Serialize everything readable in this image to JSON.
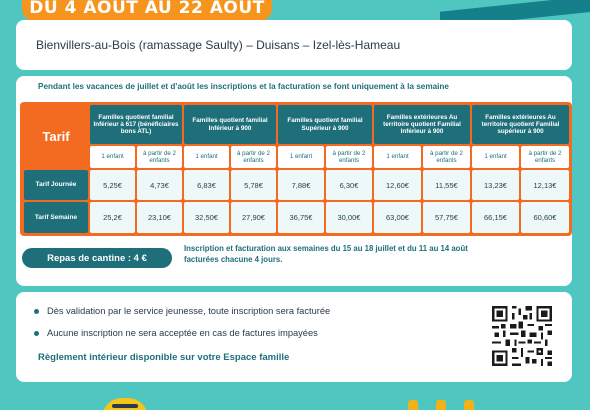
{
  "header": {
    "dates": "DU 4 AOUT AU 22 AOUT",
    "towns": "Bienvillers-au-Bois (ramassage Saulty) – Duisans – Izel-lès-Hameau"
  },
  "notice": "Pendant les vacances de juillet et d'août les inscriptions et la facturation se font uniquement à la semaine",
  "table": {
    "corner": "Tarif",
    "groups": [
      "Familles quotient familial Inférieur à 617 (bénéficiaires bons ATL)",
      "Familles quotient familial Inférieur à 900",
      "Familles quotient familial Supérieur à 900",
      "Familles extérieures Au territoire quotient Familial Inférieur à 900",
      "Familles extérieures Au territoire quotient Familial supérieur à 900"
    ],
    "sub": [
      "1 enfant",
      "à partir de 2 enfants"
    ],
    "rows": [
      {
        "label": "Tarif Journée",
        "values": [
          "5,25€",
          "4,73€",
          "6,83€",
          "5,78€",
          "7,88€",
          "6,30€",
          "12,60€",
          "11,55€",
          "13,23€",
          "12,13€"
        ]
      },
      {
        "label": "Tarif Semaine",
        "values": [
          "25,2€",
          "23,10€",
          "32,50€",
          "27,90€",
          "36,75€",
          "30,00€",
          "63,00€",
          "57,75€",
          "66,15€",
          "60,60€"
        ]
      }
    ]
  },
  "cantine": {
    "label": "Repas de cantine : 4 €",
    "note_line1": "Inscription et facturation aux semaines du 15 au 18 juillet et du 11 au 14 août",
    "note_line2": "facturées chacune 4 jours."
  },
  "info": {
    "bullets": [
      "Dès validation par le service jeunesse, toute inscription sera facturée",
      "Aucune inscription ne sera acceptée en cas de factures impayées"
    ],
    "reglement": "Règlement intérieur disponible sur votre Espace famille"
  },
  "colors": {
    "orange": "#f26b21",
    "teal_dark": "#1e6f7a",
    "background": "#4fc6c0"
  }
}
